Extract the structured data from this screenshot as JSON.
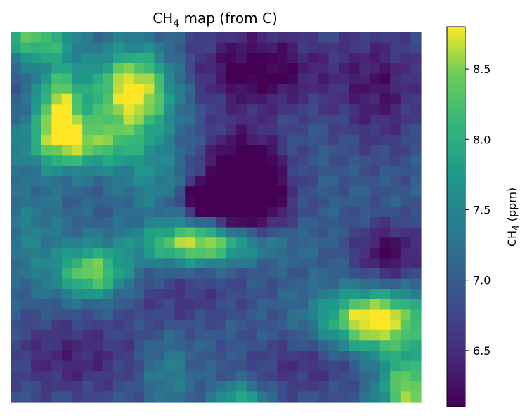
{
  "chart_data": {
    "type": "heatmap",
    "title": "CH",
    "title_sub": "4",
    "title_rest": " map (from C)",
    "colorbar": {
      "label": "CH",
      "label_sub": "4",
      "label_rest": " (ppm)",
      "range": [
        6.1,
        8.8
      ],
      "ticks": [
        "6.5",
        "7.0",
        "7.5",
        "8.0",
        "8.5"
      ],
      "colormap": "viridis"
    },
    "axes_visible": false,
    "grid": false,
    "map_cells": [
      40,
      36
    ],
    "z_range": [
      6.1,
      8.8
    ],
    "blobs": [
      {
        "x": 0.3,
        "y": 0.16,
        "sx": 0.07,
        "sy": 0.08,
        "a": 2.0
      },
      {
        "x": 0.12,
        "y": 0.2,
        "sx": 0.04,
        "sy": 0.08,
        "a": 1.6
      },
      {
        "x": 0.17,
        "y": 0.3,
        "sx": 0.1,
        "sy": 0.05,
        "a": 1.3
      },
      {
        "x": 0.06,
        "y": 0.02,
        "sx": 0.06,
        "sy": 0.04,
        "a": 1.3
      },
      {
        "x": 0.48,
        "y": 0.57,
        "sx": 0.11,
        "sy": 0.04,
        "a": 1.9
      },
      {
        "x": 0.2,
        "y": 0.65,
        "sx": 0.06,
        "sy": 0.05,
        "a": 1.5
      },
      {
        "x": 0.89,
        "y": 0.78,
        "sx": 0.09,
        "sy": 0.06,
        "a": 2.0
      },
      {
        "x": 0.97,
        "y": 0.97,
        "sx": 0.05,
        "sy": 0.07,
        "a": 1.6
      },
      {
        "x": 0.57,
        "y": 0.43,
        "sx": 0.07,
        "sy": 0.1,
        "a": -1.9
      },
      {
        "x": 0.48,
        "y": 0.45,
        "sx": 0.04,
        "sy": 0.03,
        "a": -1.2
      },
      {
        "x": 0.6,
        "y": 0.1,
        "sx": 0.12,
        "sy": 0.08,
        "a": -1.0
      },
      {
        "x": 0.9,
        "y": 0.15,
        "sx": 0.08,
        "sy": 0.12,
        "a": -0.7
      },
      {
        "x": 0.92,
        "y": 0.6,
        "sx": 0.06,
        "sy": 0.06,
        "a": -0.9
      },
      {
        "x": 0.15,
        "y": 0.88,
        "sx": 0.12,
        "sy": 0.08,
        "a": -0.6
      },
      {
        "x": 0.72,
        "y": 0.9,
        "sx": 0.1,
        "sy": 0.06,
        "a": -0.5
      },
      {
        "x": 0.42,
        "y": 0.72,
        "sx": 0.1,
        "sy": 0.05,
        "a": -0.4
      },
      {
        "x": 0.38,
        "y": 0.92,
        "sx": 0.04,
        "sy": 0.06,
        "a": 0.5
      },
      {
        "x": 0.56,
        "y": 0.99,
        "sx": 0.04,
        "sy": 0.03,
        "a": 1.0
      },
      {
        "x": 0.05,
        "y": 0.55,
        "sx": 0.06,
        "sy": 0.1,
        "a": 0.4
      },
      {
        "x": 0.35,
        "y": 0.4,
        "sx": 0.06,
        "sy": 0.06,
        "a": 0.5
      }
    ]
  }
}
